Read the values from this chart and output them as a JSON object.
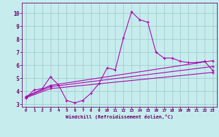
{
  "bg_color": "#c6ecee",
  "grid_color": "#a0cccc",
  "line_color": "#aa00aa",
  "marker_color": "#aa00aa",
  "xlabel": "Windchill (Refroidissement éolien,°C)",
  "xlabel_color": "#660066",
  "tick_color": "#660066",
  "xlim": [
    -0.5,
    23.5
  ],
  "ylim": [
    2.8,
    10.8
  ],
  "yticks": [
    3,
    4,
    5,
    6,
    7,
    8,
    9,
    10
  ],
  "xticks": [
    0,
    1,
    2,
    3,
    4,
    5,
    6,
    7,
    8,
    9,
    10,
    11,
    12,
    13,
    14,
    15,
    16,
    17,
    18,
    19,
    20,
    21,
    22,
    23
  ],
  "series": [
    {
      "x": [
        0,
        1,
        2,
        3,
        4,
        5,
        6,
        7,
        8,
        9,
        10,
        11,
        12,
        13,
        14,
        15,
        16,
        17,
        18,
        19,
        20,
        21,
        22,
        23
      ],
      "y": [
        3.5,
        4.1,
        4.2,
        5.1,
        4.5,
        3.3,
        3.1,
        3.3,
        3.85,
        4.6,
        5.8,
        5.65,
        8.1,
        10.1,
        9.5,
        9.3,
        7.0,
        6.55,
        6.55,
        6.3,
        6.2,
        6.2,
        6.3,
        5.6
      ],
      "has_markers": true
    },
    {
      "x": [
        0,
        3,
        23
      ],
      "y": [
        3.6,
        4.45,
        6.35
      ],
      "has_markers": true
    },
    {
      "x": [
        0,
        3,
        23
      ],
      "y": [
        3.55,
        4.35,
        5.9
      ],
      "has_markers": true
    },
    {
      "x": [
        0,
        3,
        23
      ],
      "y": [
        3.5,
        4.2,
        5.45
      ],
      "has_markers": true
    }
  ]
}
